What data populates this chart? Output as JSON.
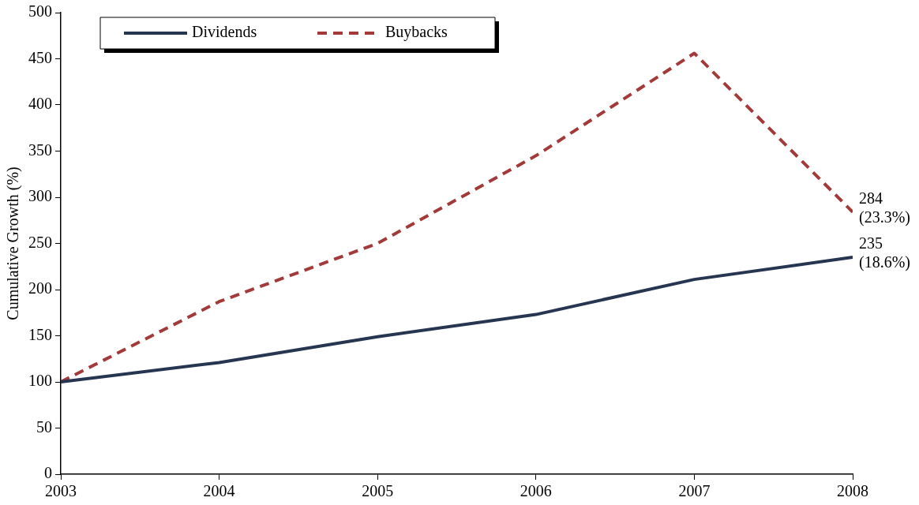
{
  "chart_data": {
    "type": "line",
    "ylabel": "Cumulative Growth (%)",
    "x": [
      2003,
      2004,
      2005,
      2006,
      2007,
      2008
    ],
    "xlim": [
      2003,
      2008
    ],
    "xticks": [
      2003,
      2004,
      2005,
      2006,
      2007,
      2008
    ],
    "ylim": [
      0,
      500
    ],
    "yticks": [
      0,
      50,
      100,
      150,
      200,
      250,
      300,
      350,
      400,
      450,
      500
    ],
    "series": [
      {
        "name": "Dividends",
        "color": "#263550",
        "line_style": "solid",
        "values": [
          100,
          121,
          149,
          173,
          211,
          235
        ]
      },
      {
        "name": "Buybacks",
        "color": "#a33a3a",
        "line_style": "dashed",
        "values": [
          100,
          187,
          250,
          345,
          456,
          284
        ]
      }
    ],
    "annotations": [
      {
        "text": "284\n(23.3%)",
        "x": 2008,
        "y": 284
      },
      {
        "text": "235\n(18.6%)",
        "x": 2008,
        "y": 235
      }
    ],
    "grid": false,
    "legend": "top left",
    "marker": "none"
  }
}
